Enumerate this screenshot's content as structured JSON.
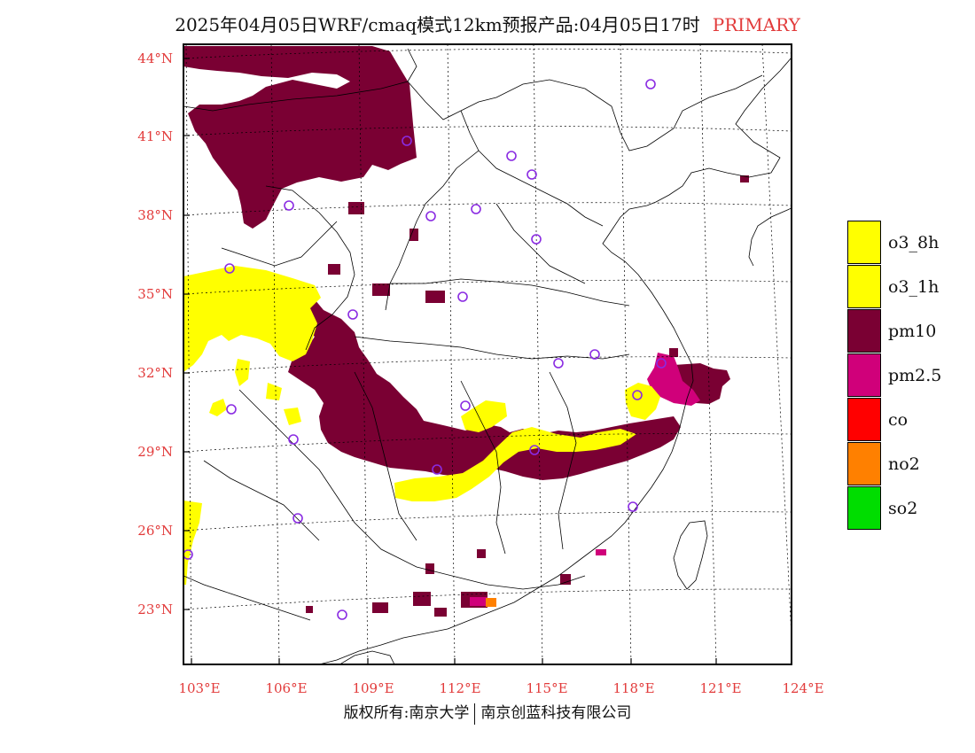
{
  "title": {
    "main": "2025年04月05日WRF/cmaq模式12km预报产品:04月05日17时",
    "tag": "PRIMARY"
  },
  "axes": {
    "lat_ticks": [
      "44°N",
      "41°N",
      "38°N",
      "35°N",
      "32°N",
      "29°N",
      "26°N",
      "23°N"
    ],
    "lon_ticks": [
      "103°E",
      "106°E",
      "109°E",
      "112°E",
      "115°E",
      "118°E",
      "121°E",
      "124°E"
    ]
  },
  "legend": [
    {
      "label": "o3_8h",
      "color": "#ffff00"
    },
    {
      "label": "o3_1h",
      "color": "#ffff00"
    },
    {
      "label": "pm10",
      "color": "#7a0033"
    },
    {
      "label": "pm2.5",
      "color": "#d0007a"
    },
    {
      "label": "co",
      "color": "#ff0000"
    },
    {
      "label": "no2",
      "color": "#ff8000"
    },
    {
      "label": "so2",
      "color": "#00dd00"
    }
  ],
  "footer": {
    "left": "版权所有:南京大学",
    "right": "南京创蓝科技有限公司"
  },
  "colors": {
    "pm10": "#7a0033",
    "pm25": "#d0007a",
    "o3": "#ffff00",
    "no2": "#ff8000",
    "tick": "#e23b3b",
    "station": "#8a2be2"
  }
}
